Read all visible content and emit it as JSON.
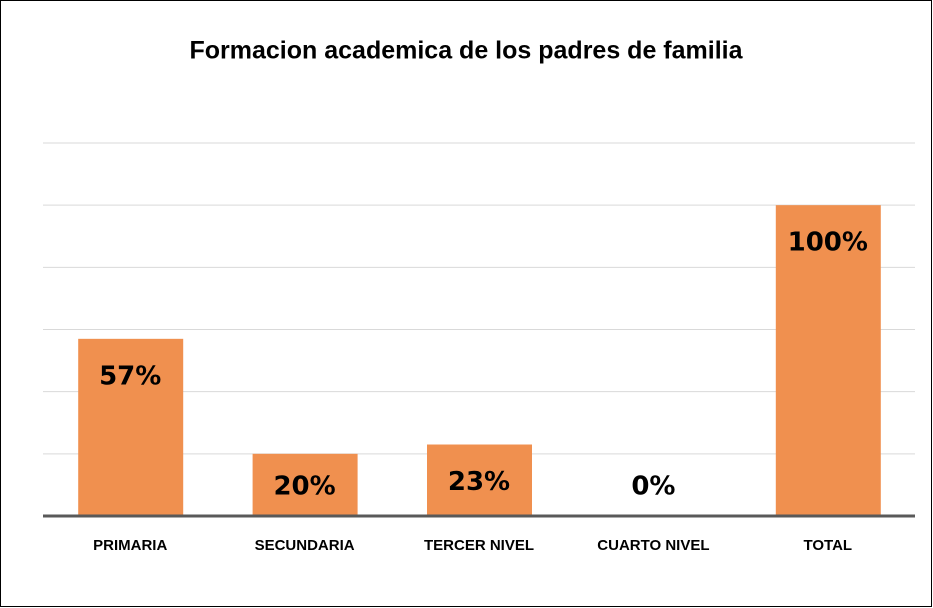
{
  "chart_data": {
    "type": "bar",
    "title": "Formacion academica de los padres de familia",
    "categories": [
      "PRIMARIA",
      "SECUNDARIA",
      "TERCER NIVEL",
      "CUARTO NIVEL",
      "TOTAL"
    ],
    "values": [
      57,
      20,
      23,
      0,
      100
    ],
    "value_labels": [
      "57%",
      "20%",
      "23%",
      "0%",
      "100%"
    ],
    "color": "#f0904f",
    "ylim": [
      0,
      120
    ],
    "yticks": [
      0,
      20,
      40,
      60,
      80,
      100,
      120
    ],
    "grid": true
  }
}
